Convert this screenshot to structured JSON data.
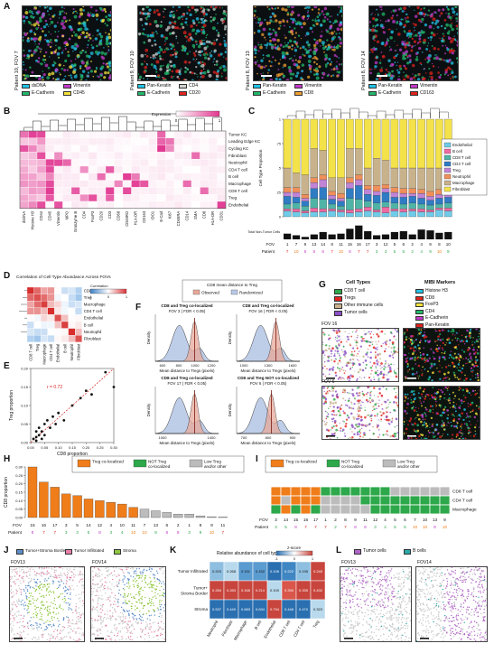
{
  "panel_letters": [
    "A",
    "B",
    "C",
    "D",
    "E",
    "F",
    "G",
    "H",
    "I",
    "J",
    "K",
    "L"
  ],
  "A": {
    "images": [
      {
        "label": "Patient 10, FOV 7",
        "legend": [
          [
            "dsDNA",
            "#22c3e6"
          ],
          [
            "Vimentin",
            "#c23ac9"
          ],
          [
            "E-Cadherin",
            "#22b86a"
          ],
          [
            "CD45",
            "#f2e23c"
          ]
        ]
      },
      {
        "label": "Patient 9, FOV 10",
        "legend": [
          [
            "Pan-Keratin",
            "#22c3e6"
          ],
          [
            "CD4",
            "#cfcfcf"
          ],
          [
            "E-Cadherin",
            "#22b86a"
          ],
          [
            "CD20",
            "#e0231e"
          ]
        ]
      },
      {
        "label": "Patient 8, FOV 13",
        "legend": [
          [
            "Pan-Keratin",
            "#22c3e6"
          ],
          [
            "Vimentin",
            "#c23ac9"
          ],
          [
            "E-Cadherin",
            "#22b86a"
          ],
          [
            "CD8",
            "#f0a030"
          ]
        ]
      },
      {
        "label": "Patient 8, FOV 14",
        "legend": [
          [
            "Pan-Keratin",
            "#22c3e6"
          ],
          [
            "Vimentin",
            "#c23ac9"
          ],
          [
            "E-Cadherin",
            "#22b86a"
          ],
          [
            "CD163",
            "#e0231e"
          ]
        ]
      }
    ]
  },
  "B": {
    "legend_title": "Expression",
    "legend_ticks": [
      "0",
      "1"
    ],
    "rows": [
      "Tumor KC",
      "Leading Edge KC",
      "Cycling KC",
      "Fibroblast",
      "Neutrophil",
      "CD4 T cell",
      "B cell",
      "Macrophage",
      "CD8 T cell",
      "Treg",
      "Endothelial"
    ],
    "cols": [
      "dsDNA",
      "Histone H3",
      "CD44",
      "CD45",
      "Vimentin",
      "MPO",
      "Granzyme B",
      "CD4",
      "FoxP3",
      "CD20",
      "CD3",
      "CD68",
      "CD45RO",
      "HLA-DR",
      "CD163",
      "IDO1",
      "E-Cad",
      "Ki67",
      "CD45RA",
      "CD14",
      "SMA",
      "CD8",
      "HLA-DR",
      "CD31"
    ]
  },
  "C": {
    "ylabel": "Cell Type Proportion",
    "total_label": "Total Non-Tumor Cells",
    "fov_label": "FOV",
    "patient_label": "Patient",
    "fovs": [
      "1",
      "7",
      "9",
      "13",
      "14",
      "8",
      "11",
      "15",
      "16",
      "17",
      "3",
      "12",
      "5",
      "6",
      "2",
      "4",
      "9",
      "8",
      "10"
    ],
    "patients": [
      "7",
      "10",
      "8",
      "8",
      "8",
      "7",
      "10",
      "8",
      "7",
      "7",
      "3",
      "3",
      "5",
      "5",
      "2",
      "4",
      "9",
      "10",
      "9"
    ],
    "legend": [
      [
        "Endothelial",
        "#6fcbe8"
      ],
      [
        "B cell",
        "#ef6aa3"
      ],
      [
        "CD8 T cell",
        "#4fb4a6"
      ],
      [
        "CD4 T cell",
        "#2f7bc4"
      ],
      [
        "Treg",
        "#c084d6"
      ],
      [
        "Neutrophil",
        "#ef8f5a"
      ],
      [
        "Macrophage",
        "#c8b28c"
      ],
      [
        "Fibroblast",
        "#f4e24a"
      ]
    ],
    "series_names": [
      "Endothelial",
      "B cell",
      "CD8 T cell",
      "CD4 T cell",
      "Treg",
      "Neutrophil",
      "Macrophage",
      "Fibroblast"
    ],
    "bars": [
      [
        0.06,
        0.02,
        0.05,
        0.08,
        0.04,
        0.05,
        0.2,
        0.5
      ],
      [
        0.05,
        0.03,
        0.06,
        0.06,
        0.05,
        0.05,
        0.15,
        0.55
      ],
      [
        0.04,
        0.02,
        0.05,
        0.05,
        0.03,
        0.04,
        0.2,
        0.57
      ],
      [
        0.05,
        0.04,
        0.1,
        0.1,
        0.06,
        0.05,
        0.3,
        0.3
      ],
      [
        0.05,
        0.03,
        0.1,
        0.12,
        0.08,
        0.05,
        0.25,
        0.32
      ],
      [
        0.06,
        0.02,
        0.05,
        0.05,
        0.04,
        0.04,
        0.14,
        0.6
      ],
      [
        0.05,
        0.02,
        0.04,
        0.05,
        0.03,
        0.05,
        0.16,
        0.6
      ],
      [
        0.04,
        0.03,
        0.12,
        0.1,
        0.06,
        0.05,
        0.3,
        0.3
      ],
      [
        0.05,
        0.03,
        0.1,
        0.14,
        0.06,
        0.05,
        0.27,
        0.3
      ],
      [
        0.06,
        0.04,
        0.06,
        0.07,
        0.05,
        0.04,
        0.18,
        0.5
      ],
      [
        0.05,
        0.02,
        0.07,
        0.08,
        0.04,
        0.06,
        0.28,
        0.4
      ],
      [
        0.04,
        0.06,
        0.05,
        0.1,
        0.04,
        0.04,
        0.25,
        0.42
      ],
      [
        0.06,
        0.02,
        0.06,
        0.06,
        0.05,
        0.05,
        0.2,
        0.5
      ],
      [
        0.05,
        0.03,
        0.05,
        0.07,
        0.04,
        0.05,
        0.21,
        0.5
      ],
      [
        0.06,
        0.02,
        0.06,
        0.07,
        0.03,
        0.05,
        0.21,
        0.5
      ],
      [
        0.05,
        0.03,
        0.05,
        0.06,
        0.05,
        0.04,
        0.22,
        0.5
      ],
      [
        0.05,
        0.02,
        0.05,
        0.05,
        0.04,
        0.05,
        0.24,
        0.5
      ],
      [
        0.07,
        0.02,
        0.04,
        0.06,
        0.04,
        0.05,
        0.22,
        0.5
      ],
      [
        0.06,
        0.03,
        0.05,
        0.06,
        0.04,
        0.04,
        0.22,
        0.5
      ]
    ],
    "totals": [
      0.35,
      0.25,
      0.15,
      0.3,
      0.45,
      0.3,
      0.35,
      0.65,
      0.85,
      0.5,
      0.25,
      0.3,
      0.45,
      0.5,
      0.3,
      0.6,
      0.55,
      0.4,
      0.45
    ]
  },
  "D": {
    "title": "Correlation of Cell Type Abundance Across FOVs",
    "legend_title": "Correlation",
    "legend_ticks": [
      "-1",
      "0",
      "1"
    ],
    "labels": [
      "CD8 T cell",
      "Treg",
      "Macrophage",
      "CD4 T cell",
      "Endothelial",
      "B cell",
      "Neutrophil",
      "Fibroblast"
    ]
  },
  "E": {
    "xlabel": "CD8 proportion",
    "ylabel": "Treg proportion",
    "annotation": "r = 0.72",
    "xticks": [
      "0.00",
      "0.05",
      "0.10",
      "0.15",
      "0.20",
      "0.25",
      "0.30"
    ],
    "yticks": [
      "0.00",
      "0.05",
      "0.10",
      "0.15",
      "0.20"
    ],
    "points": [
      [
        0.01,
        0.01
      ],
      [
        0.02,
        0.015
      ],
      [
        0.02,
        0.03
      ],
      [
        0.03,
        0.02
      ],
      [
        0.03,
        0.04
      ],
      [
        0.04,
        0.03
      ],
      [
        0.05,
        0.05
      ],
      [
        0.05,
        0.02
      ],
      [
        0.06,
        0.06
      ],
      [
        0.07,
        0.04
      ],
      [
        0.08,
        0.07
      ],
      [
        0.09,
        0.05
      ],
      [
        0.1,
        0.08
      ],
      [
        0.12,
        0.06
      ],
      [
        0.15,
        0.1
      ],
      [
        0.18,
        0.12
      ],
      [
        0.2,
        0.14
      ],
      [
        0.22,
        0.13
      ],
      [
        0.27,
        0.19
      ],
      [
        0.3,
        0.15
      ],
      [
        0.02,
        0.005
      ],
      [
        0.04,
        0.01
      ]
    ]
  },
  "F": {
    "legend_title": "CD8 mean distance to Treg",
    "legend": [
      [
        "Observed",
        "#e8a99a"
      ],
      [
        "Randomized",
        "#b9c9e6"
      ]
    ],
    "xlabel": "Mean distance to Tregs (pixels)",
    "ylabel": "Density",
    "plots": [
      {
        "title": "CD8 and Treg co-localized",
        "sub": "FOV 3 ( FDR < 0.05)",
        "xticks": [
          "600",
          "800",
          "1000",
          "1200"
        ]
      },
      {
        "title": "CD8 and Treg co-localized",
        "sub": "FOV 16 ( FDR < 0.05)",
        "xticks": [
          "1000",
          "1300",
          "1600"
        ]
      },
      {
        "title": "CD8 and Treg co-localized",
        "sub": "FOV 17 ( FDR < 0.05)",
        "xticks": [
          "1000",
          "1400"
        ]
      },
      {
        "title": "CD8 and Treg NOT co-localized",
        "sub": "FOV 6 ( FDR < 0.05)",
        "xticks": [
          "700",
          "800",
          "900"
        ]
      }
    ]
  },
  "G": {
    "cell_types_title": "Cell Types",
    "cell_types": [
      [
        "CD8 T cell",
        "#2da84a"
      ],
      [
        "Tregs",
        "#e0231e"
      ],
      [
        "Other immune cells",
        "#c8b28c"
      ],
      [
        "Tumor cells",
        "#8a4fc4"
      ]
    ],
    "mibi_title": "MIBI Markers",
    "mibi": [
      [
        "Histone H3",
        "#22c3e6"
      ],
      [
        "CD8",
        "#e0231e"
      ],
      [
        "FoxP3",
        "#f2e23c"
      ],
      [
        "CD4",
        "#22b86a"
      ],
      [
        "E-Cadherin",
        "#c23ac9"
      ],
      [
        "Pan-Keratin",
        "#e0231e"
      ]
    ],
    "fov_labels": [
      "FOV 16",
      "FOV 6"
    ]
  },
  "H": {
    "ylabel": "CD8 proportion",
    "legend": [
      [
        "Treg co-localized",
        "#ef7d1a"
      ],
      [
        "NOT Treg co-localized",
        "#2da84a"
      ],
      [
        "Low Treg and/or other",
        "#bcbcbc"
      ]
    ],
    "yticks": [
      "0.00",
      "0.05",
      "0.10",
      "0.15",
      "0.20",
      "0.25",
      "0.30"
    ],
    "fovs": [
      "15",
      "16",
      "17",
      "3",
      "5",
      "14",
      "12",
      "4",
      "10",
      "11",
      "7",
      "13",
      "6",
      "2",
      "1",
      "8",
      "9",
      "11"
    ],
    "patients": [
      "8",
      "7",
      "7",
      "3",
      "3",
      "5",
      "8",
      "3",
      "4",
      "10",
      "10",
      "9",
      "8",
      "8",
      "3",
      "9",
      "10",
      "7"
    ],
    "values": [
      0.3,
      0.21,
      0.18,
      0.14,
      0.13,
      0.11,
      0.1,
      0.09,
      0.08,
      0.06,
      0.05,
      0.04,
      0.03,
      0.02,
      0.02,
      0.01,
      0.005,
      0.003
    ],
    "groups": [
      "treg",
      "treg",
      "treg",
      "treg",
      "treg",
      "treg",
      "treg",
      "treg",
      "treg",
      "treg",
      "low",
      "low",
      "low",
      "low",
      "low",
      "low",
      "low",
      "low"
    ]
  },
  "I": {
    "legend": [
      [
        "Treg co-localized",
        "#ef7d1a"
      ],
      [
        "NOT Treg co-localized",
        "#2da84a"
      ],
      [
        "Low Treg and/or other",
        "#bcbcbc"
      ]
    ],
    "rows": [
      "CD8 T cell",
      "CD4 T cell",
      "Macrophage"
    ],
    "fovs": [
      "3",
      "14",
      "15",
      "16",
      "17",
      "1",
      "2",
      "8",
      "9",
      "11",
      "12",
      "4",
      "5",
      "6",
      "7",
      "10",
      "13",
      "9"
    ],
    "patients": [
      "3",
      "5",
      "8",
      "7",
      "7",
      "7",
      "2",
      "7",
      "8",
      "8",
      "3",
      "4",
      "5",
      "5",
      "10",
      "10",
      "8",
      "10"
    ],
    "grid": [
      [
        "o",
        "o",
        "o",
        "o",
        "o",
        "g",
        "g",
        "g",
        "g",
        "g",
        "g",
        "g",
        "gr",
        "gr",
        "gr",
        "gr",
        "gr",
        "gr"
      ],
      [
        "o",
        "gr",
        "o",
        "o",
        "o",
        "gr",
        "gr",
        "gr",
        "gr",
        "g",
        "g",
        "g",
        "g",
        "g",
        "g",
        "g",
        "g",
        "g"
      ],
      [
        "g",
        "o",
        "g",
        "o",
        "g",
        "gr",
        "gr",
        "gr",
        "gr",
        "gr",
        "g",
        "g",
        "g",
        "g",
        "g",
        "g",
        "g",
        "g"
      ]
    ]
  },
  "J": {
    "legend": [
      [
        "Tumor+Stroma Border",
        "#5d8fc9"
      ],
      [
        "Tumor Infiltrated",
        "#e87fa8"
      ],
      [
        "Stroma",
        "#8fc63f"
      ]
    ],
    "fov_labels": [
      "FOV13",
      "FOV14"
    ]
  },
  "K": {
    "title": "Relative abundance of cell type",
    "legend_title": "z-score",
    "legend_ticks": [
      "-1",
      "0",
      "1"
    ],
    "rows": [
      "Tumor Infiltrated",
      "Tumor+Stroma Border",
      "Stroma"
    ],
    "cols": [
      "Neutrophil",
      "Fibroblast",
      "Macrophage",
      "B cell",
      "Endothelial",
      "CD8 T cell",
      "CD4 T cell",
      "Treg"
    ],
    "values": [
      [
        "0.203",
        "0.268",
        "0.151",
        "0.152",
        "0.106",
        "0.222",
        "0.195",
        "0.245"
      ],
      [
        "0.260",
        "0.283",
        "0.166",
        "0.214",
        "0.100",
        "0.330",
        "0.335",
        "0.432"
      ],
      [
        "0.537",
        "0.449",
        "0.683",
        "0.634",
        "0.794",
        "0.448",
        "0.470",
        "0.323"
      ]
    ],
    "colors": [
      [
        "#8fbfe0",
        "#b9d9ec",
        "#5a9bd0",
        "#5a9bd0",
        "#2a6fb0",
        "#3f86c2",
        "#8fbfe0",
        "#c8453d"
      ],
      [
        "#c8453d",
        "#c8453d",
        "#c8453d",
        "#c8453d",
        "#b9d9ec",
        "#d9564a",
        "#c8453d",
        "#c8453d"
      ],
      [
        "#2a6fb0",
        "#2a6fb0",
        "#2a6fb0",
        "#2a6fb0",
        "#c8453d",
        "#2a6fb0",
        "#2a6fb0",
        "#b9d9ec"
      ]
    ]
  },
  "L": {
    "legend": [
      [
        "Tumor cells",
        "#b065c8"
      ],
      [
        "B cells",
        "#2aa8a8"
      ]
    ],
    "fov_labels": [
      "FOV13",
      "FOV14"
    ]
  }
}
